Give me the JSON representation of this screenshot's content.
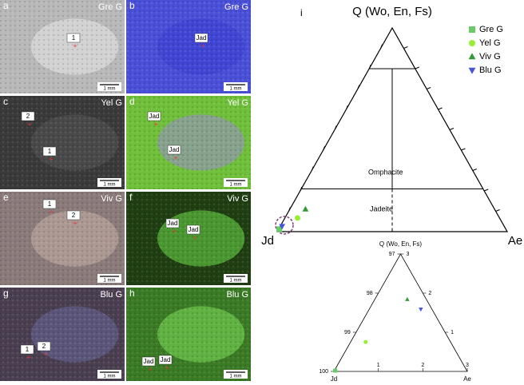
{
  "panels": [
    {
      "letter": "a",
      "sample": "Gre G",
      "labels": [
        "1"
      ],
      "scale": "1 mm"
    },
    {
      "letter": "b",
      "sample": "Gre G",
      "labels": [
        "Jad"
      ],
      "scale": "1 mm"
    },
    {
      "letter": "c",
      "sample": "Yel G",
      "labels": [
        "2",
        "1"
      ],
      "scale": "1 mm"
    },
    {
      "letter": "d",
      "sample": "Yel G",
      "labels": [
        "Jad",
        "Jad"
      ],
      "scale": "1 mm"
    },
    {
      "letter": "e",
      "sample": "Viv G",
      "labels": [
        "1",
        "2"
      ],
      "scale": "1 mm"
    },
    {
      "letter": "f",
      "sample": "Viv G",
      "labels": [
        "Jad",
        "Jad"
      ],
      "scale": "1 mm"
    },
    {
      "letter": "g",
      "sample": "Blu G",
      "labels": [
        "1",
        "2"
      ],
      "scale": "1 mm"
    },
    {
      "letter": "h",
      "sample": "Blu G",
      "labels": [
        "Jad",
        "Jad"
      ],
      "scale": "1 mm"
    }
  ],
  "chart_data": [
    {
      "type": "ternary",
      "panel": "i",
      "title": "Q (Wo, En, Fs)",
      "corners": [
        "Jd",
        "Ae"
      ],
      "regions": [
        "Omphacite",
        "Jadeite"
      ],
      "xlim": [
        0,
        100
      ],
      "ylim": [
        0,
        100
      ],
      "series": [
        {
          "name": "Gre G",
          "color": "#66cc66",
          "marker": "square",
          "x": [
            0.3
          ],
          "y": [
            1.2
          ]
        },
        {
          "name": "Yel G",
          "color": "#99ee33",
          "marker": "circle",
          "x": [
            5.5
          ],
          "y": [
            6.7
          ]
        },
        {
          "name": "Viv G",
          "color": "#339933",
          "marker": "triangle",
          "x": [
            6.8
          ],
          "y": [
            11
          ]
        },
        {
          "name": "Blu G",
          "color": "#4455dd",
          "marker": "triangle-down",
          "x": [
            0.8
          ],
          "y": [
            2.7
          ]
        }
      ]
    },
    {
      "type": "ternary",
      "title": "Q (Wo, En, Fs)",
      "corners": [
        "Jd",
        "Ae"
      ],
      "xlim": [
        0,
        3
      ],
      "ylim": [
        0,
        3
      ],
      "leftticks": [
        97,
        98,
        99,
        100
      ],
      "rightticks": [
        3,
        2,
        1
      ],
      "bottomticks": [
        1,
        2,
        3
      ],
      "series": [
        {
          "name": "Gre G",
          "color": "#66cc66",
          "marker": "square",
          "x": [
            0.02
          ],
          "y": [
            0.02
          ]
        },
        {
          "name": "Yel G",
          "color": "#99ee33",
          "marker": "circle",
          "x": [
            0.34
          ],
          "y": [
            0.75
          ]
        },
        {
          "name": "Viv G",
          "color": "#339933",
          "marker": "triangle",
          "x": [
            0.73
          ],
          "y": [
            1.84
          ]
        },
        {
          "name": "Blu G",
          "color": "#4455dd",
          "marker": "triangle-down",
          "x": [
            1.16
          ],
          "y": [
            1.59
          ]
        }
      ]
    }
  ]
}
